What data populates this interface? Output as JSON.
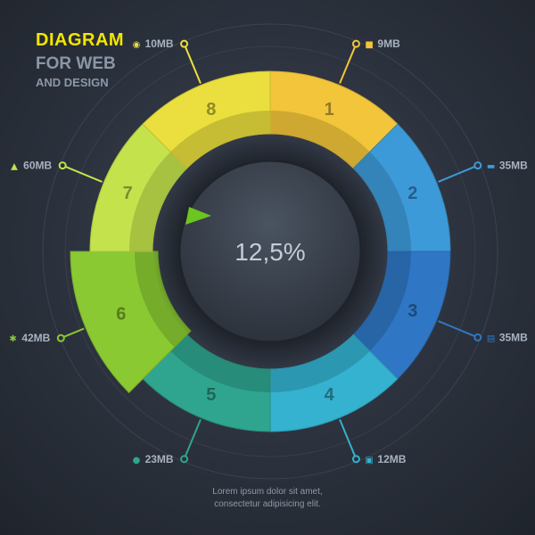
{
  "title": {
    "line1": "DIAGRAM",
    "line2": "FOR WEB",
    "line3": "AND DESIGN"
  },
  "center_label": "12,5%",
  "footer": {
    "line1": "Lorem ipsum dolor sit amet,",
    "line2": "consectetur adipisicing elit."
  },
  "chart_data": {
    "type": "pie",
    "style": "donut",
    "highlighted_segment": "6",
    "center_value": "12,5%",
    "segments": [
      {
        "id": "1",
        "label": "1",
        "callout": "9MB",
        "icon": "shirt-icon",
        "color": "#f2c53a"
      },
      {
        "id": "2",
        "label": "2",
        "callout": "35MB",
        "icon": "monitor-icon",
        "color": "#3d9ad9"
      },
      {
        "id": "3",
        "label": "3",
        "callout": "35MB",
        "icon": "document-icon",
        "color": "#2f77c4"
      },
      {
        "id": "4",
        "label": "4",
        "callout": "12MB",
        "icon": "calendar-icon",
        "color": "#34b2cf"
      },
      {
        "id": "5",
        "label": "5",
        "callout": "23MB",
        "icon": "disc-icon",
        "color": "#2fa58f"
      },
      {
        "id": "6",
        "label": "6",
        "callout": "42MB",
        "icon": "gear-icon",
        "color": "#8ac932"
      },
      {
        "id": "7",
        "label": "7",
        "callout": "60MB",
        "icon": "user-icon",
        "color": "#c4e24c"
      },
      {
        "id": "8",
        "label": "8",
        "callout": "10MB",
        "icon": "globe-icon",
        "color": "#eadf3e"
      }
    ]
  }
}
